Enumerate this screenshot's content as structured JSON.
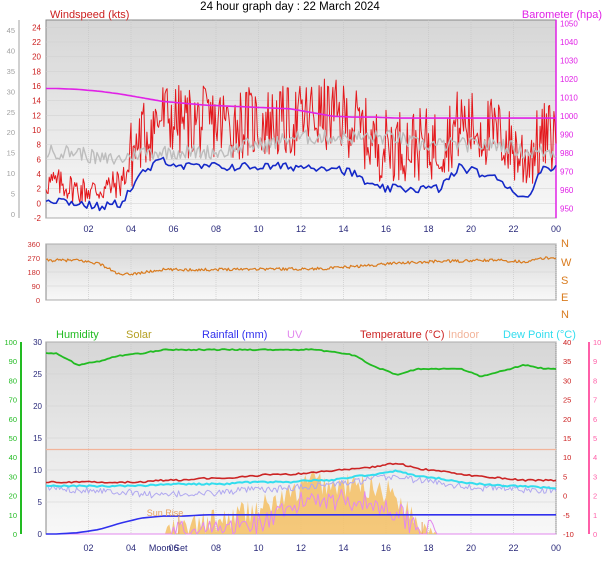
{
  "title": "24 hour graph day : 22 March 2024",
  "colors": {
    "wind": "#e4181c",
    "wind_avg": "#1428c8",
    "gust_band": "#bdbdbd",
    "baro": "#e022e6",
    "dir": "#d97b1e",
    "humidity": "#22bb22",
    "solar": "#b5a024",
    "rain": "#3030ee",
    "uv": "#e288ee",
    "temp": "#cc2424",
    "indoor": "#f2b49a",
    "dew": "#33ddee",
    "solar_fill": "#f4c26c",
    "axis_grey": "#a0a0a0",
    "axis_left_green": "#22bb22",
    "axis_right_pink": "#ff5fa8"
  },
  "x_ticks": [
    "02",
    "04",
    "06",
    "08",
    "10",
    "12",
    "14",
    "16",
    "18",
    "20",
    "22",
    "00"
  ],
  "chart_data": [
    {
      "type": "line",
      "title": "",
      "ylabel_left": "Windspeed (kts)",
      "ylabel_right": "Barometer (hpa)",
      "left_axis": {
        "ticks": [
          "-2",
          "0",
          "2",
          "4",
          "6",
          "8",
          "10",
          "12",
          "14",
          "16",
          "18",
          "20",
          "22",
          "24"
        ],
        "ylim": [
          -2,
          25
        ]
      },
      "outer_axis": {
        "ticks": [
          "0",
          "5",
          "10",
          "15",
          "20",
          "25",
          "30",
          "35",
          "40",
          "45"
        ]
      },
      "right_axis": {
        "ticks": [
          "950",
          "960",
          "970",
          "980",
          "990",
          "1000",
          "1010",
          "1020",
          "1030",
          "1040",
          "1050"
        ],
        "ylim": [
          945,
          1052
        ]
      },
      "x_hours": [
        0.5,
        1.5,
        2.5,
        3.5,
        4.5,
        5.5,
        6.5,
        7.5,
        8.5,
        9.5,
        10.5,
        11.5,
        12.5,
        13.5,
        14.5,
        15.5,
        16.5,
        17.5,
        18.5,
        19.5,
        20.5,
        21.5,
        22.5,
        23.5
      ],
      "series": [
        {
          "name": "Windspeed (kts)",
          "axis": "left",
          "values": [
            2,
            1,
            1,
            2,
            7,
            10,
            9,
            9,
            9,
            9,
            9,
            9,
            10,
            10,
            9,
            6,
            6,
            6,
            6,
            9,
            8,
            7,
            4,
            7
          ]
        },
        {
          "name": "",
          "axis": "left",
          "values": [
            0.5,
            0,
            -0.5,
            0,
            4,
            6,
            5,
            5,
            5,
            5,
            5,
            5,
            5,
            5,
            4,
            2,
            2,
            2,
            2,
            5,
            4,
            3,
            0.5,
            5
          ]
        },
        {
          "name": "",
          "axis": "left",
          "values": [
            7,
            7,
            6,
            6,
            7,
            7,
            7,
            7,
            7,
            8,
            8,
            9,
            9,
            9,
            9,
            9,
            9,
            8,
            8,
            8,
            8,
            8,
            7,
            7
          ]
        },
        {
          "name": "Barometer (hpa)",
          "axis": "right",
          "values": [
            1015,
            1014.5,
            1013.5,
            1012,
            1010,
            1008,
            1007,
            1006,
            1005.5,
            1005,
            1004.5,
            1004,
            1002,
            1000,
            999.5,
            999.5,
            999,
            999,
            999,
            999,
            999,
            999,
            999,
            999
          ]
        }
      ]
    },
    {
      "type": "line",
      "title": "",
      "right_ticks": [
        "N",
        "W",
        "S",
        "E",
        "N"
      ],
      "left_axis": {
        "ticks": [
          "0",
          "90",
          "180",
          "270",
          "360"
        ],
        "ylim": [
          0,
          360
        ]
      },
      "x_hours": [
        0.5,
        1.5,
        2.5,
        3.5,
        4.5,
        5.5,
        6.5,
        7.5,
        8.5,
        9.5,
        10.5,
        11.5,
        12.5,
        13.5,
        14.5,
        15.5,
        16.5,
        17.5,
        18.5,
        19.5,
        20.5,
        21.5,
        22.5,
        23.5
      ],
      "series": [
        {
          "name": "",
          "values": [
            255,
            255,
            235,
            160,
            175,
            195,
            195,
            195,
            198,
            200,
            200,
            200,
            200,
            205,
            215,
            225,
            240,
            240,
            250,
            250,
            255,
            255,
            245,
            270
          ]
        }
      ]
    },
    {
      "type": "line",
      "title": "",
      "legend": [
        "Humidity",
        "Solar",
        "Rainfall (mm)",
        "UV",
        "Temperature (°C)",
        "Indoor",
        "Dew Point (°C)"
      ],
      "left_axis": {
        "ticks": [
          "0",
          "10",
          "20",
          "30",
          "40",
          "50",
          "60",
          "70",
          "80",
          "90",
          "100"
        ],
        "ylim": [
          0,
          100
        ]
      },
      "inner_axis": {
        "ticks": [
          "0",
          "5",
          "10",
          "15",
          "20",
          "25",
          "30"
        ],
        "ylim": [
          0,
          30
        ]
      },
      "right_axis": {
        "ticks": [
          "-10",
          "-5",
          "0",
          "5",
          "10",
          "15",
          "20",
          "25",
          "30",
          "35",
          "40"
        ],
        "ylim": [
          -10,
          40
        ]
      },
      "uv_axis": {
        "ticks": [
          "0",
          "1",
          "2",
          "3",
          "4",
          "5",
          "6",
          "7",
          "8",
          "9",
          "10"
        ],
        "ylim": [
          0,
          10
        ]
      },
      "annotations": [
        "Sun Rise",
        "Moon Set"
      ],
      "x_hours": [
        0.5,
        1.5,
        2.5,
        3.5,
        4.5,
        5.5,
        6.5,
        7.5,
        8.5,
        9.5,
        10.5,
        11.5,
        12.5,
        13.5,
        14.5,
        15.5,
        16.5,
        17.5,
        18.5,
        19.5,
        20.5,
        21.5,
        22.5,
        23.5
      ],
      "series": [
        {
          "name": "Humidity",
          "axis": "left",
          "values": [
            94,
            88,
            90,
            93,
            94,
            96,
            96,
            96,
            96,
            96,
            96,
            96,
            96,
            95,
            93,
            87,
            83,
            86,
            86,
            86,
            82,
            85,
            88,
            86
          ]
        },
        {
          "name": "Temperature (°C)",
          "axis": "right",
          "values": [
            3.5,
            3.5,
            3.5,
            3.5,
            3.5,
            4,
            4,
            4.5,
            4.5,
            5,
            5.5,
            5.5,
            6,
            6.5,
            7,
            7.5,
            8.5,
            7,
            6.5,
            5.5,
            5,
            4.5,
            4,
            4
          ]
        },
        {
          "name": "Dew Point (°C)",
          "axis": "right",
          "values": [
            2.5,
            2.5,
            2.5,
            2.5,
            2.5,
            3,
            3,
            3,
            3,
            3.5,
            3.5,
            3.5,
            4,
            4,
            5,
            5.5,
            6.5,
            5,
            4.5,
            3.5,
            3,
            2.5,
            2.5,
            2
          ]
        },
        {
          "name": "Indoor",
          "axis": "right",
          "values": [
            12,
            12,
            12,
            12,
            12,
            12,
            12,
            12,
            12,
            12,
            12,
            12,
            12,
            12,
            12,
            12,
            12,
            12,
            12,
            12,
            12,
            12,
            12,
            12
          ]
        },
        {
          "name": "",
          "axis": "right",
          "values": [
            2,
            1.5,
            1.5,
            1,
            0.5,
            0,
            0.5,
            0.5,
            1,
            1.5,
            1.5,
            2,
            2.5,
            3,
            3.5,
            4.5,
            5,
            4,
            3.5,
            2.5,
            2,
            2,
            1.5,
            1.5
          ]
        },
        {
          "name": "Rainfall (mm)",
          "axis": "inner",
          "values": [
            0,
            0.2,
            0.7,
            1.7,
            2.5,
            2.8,
            2.8,
            3,
            3,
            3,
            3,
            3,
            3,
            3,
            3,
            3,
            3,
            3,
            3,
            3,
            3,
            3,
            3,
            3
          ]
        },
        {
          "name": "Solar",
          "axis": "uv",
          "values": [
            0,
            0,
            0,
            0,
            0,
            0,
            0.3,
            0.5,
            0.8,
            1.2,
            1.5,
            2,
            2.8,
            2.5,
            2.5,
            2.5,
            2,
            0.6,
            0,
            0,
            0,
            0,
            0,
            0
          ]
        },
        {
          "name": "UV",
          "axis": "uv",
          "values": [
            0,
            0,
            0,
            0,
            0,
            0,
            0.1,
            0.2,
            0.3,
            0.5,
            0.7,
            1.2,
            2,
            1.8,
            1.8,
            1.5,
            1.2,
            0.3,
            0,
            0,
            0,
            0,
            0,
            0
          ]
        }
      ]
    }
  ]
}
